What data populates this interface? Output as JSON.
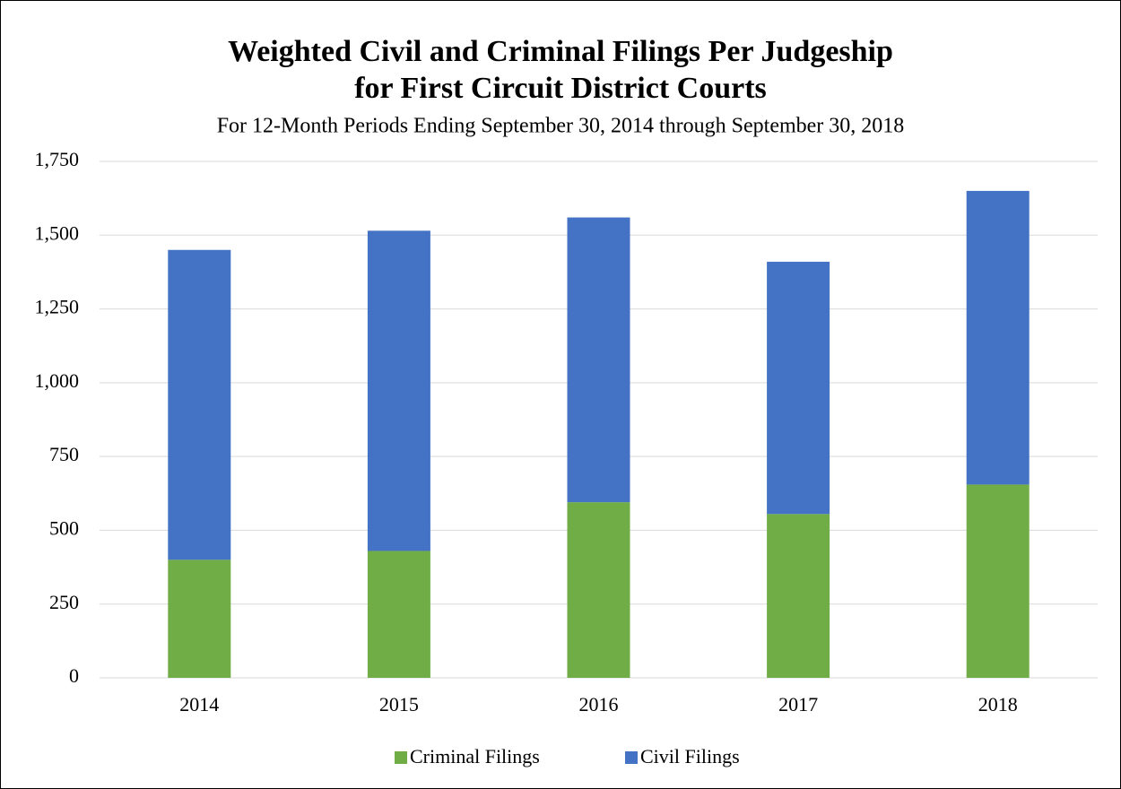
{
  "chart_data": {
    "type": "stacked_bar",
    "title": [
      "Weighted Civil and Criminal Filings Per Judgeship",
      "for First Circuit District Courts"
    ],
    "subtitle": "For 12-Month Periods Ending September 30, 2014 through September 30, 2018",
    "categories": [
      "2014",
      "2015",
      "2016",
      "2017",
      "2018"
    ],
    "series": [
      {
        "name": "Criminal Filings",
        "color": "#70ad47",
        "values": [
          400,
          430,
          595,
          555,
          655
        ]
      },
      {
        "name": "Civil Filings",
        "color": "#4472c4",
        "values": [
          1050,
          1085,
          965,
          855,
          995
        ]
      }
    ],
    "ylim": [
      0,
      1750
    ],
    "yticks": [
      0,
      250,
      500,
      750,
      {
        "value": 1000,
        "label": "1,000"
      },
      {
        "value": 1250,
        "label": "1,250"
      },
      {
        "value": 1500,
        "label": "1,500"
      },
      {
        "value": 1750,
        "label": "1,750"
      }
    ],
    "grid": true,
    "legend": "bottom"
  }
}
